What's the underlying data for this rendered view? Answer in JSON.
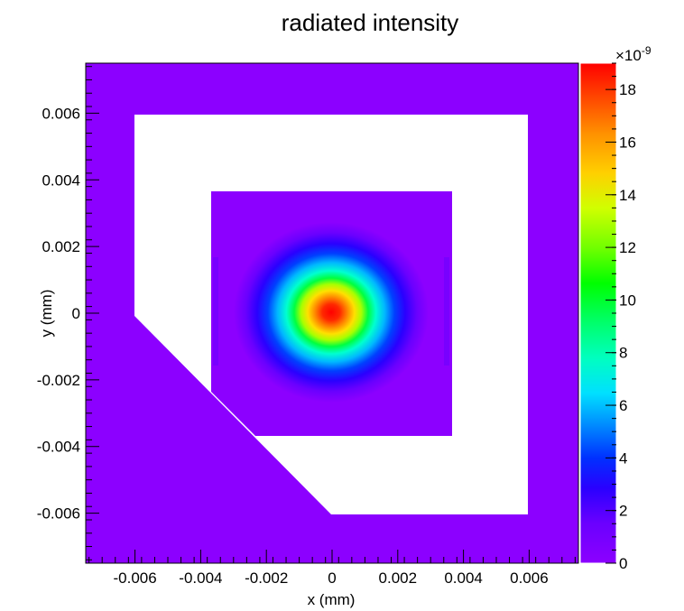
{
  "chart_data": {
    "type": "heatmap",
    "title": "radiated intensity",
    "xlabel": "x (mm)",
    "ylabel": "y (mm)",
    "xlim": [
      -0.0075,
      0.0075
    ],
    "ylim": [
      -0.0075,
      0.0075
    ],
    "x_ticks": [
      -0.006,
      -0.004,
      -0.002,
      0,
      0.002,
      0.004,
      0.006
    ],
    "x_tick_labels": [
      "-0.006",
      "-0.004",
      "-0.002",
      "0",
      "0.002",
      "0.004",
      "0.006"
    ],
    "y_ticks": [
      -0.006,
      -0.004,
      -0.002,
      0,
      0.002,
      0.004,
      0.006
    ],
    "y_tick_labels": [
      "-0.006",
      "-0.004",
      "-0.002",
      "0",
      "0.002",
      "0.004",
      "0.006"
    ],
    "colorbar": {
      "range": [
        0,
        19
      ],
      "exponent_label": "×10",
      "exponent_power": "-9",
      "ticks": [
        0,
        2,
        4,
        6,
        8,
        10,
        12,
        14,
        16,
        18
      ],
      "tick_labels": [
        "0",
        "2",
        "4",
        "6",
        "8",
        "10",
        "12",
        "14",
        "16",
        "18"
      ]
    },
    "peak": {
      "x": 0,
      "y": 0,
      "value": 19
    },
    "beam_sigma_x": 0.0014,
    "beam_sigma_y": 0.0012,
    "background_value": 0,
    "zero_region_color": "#ffffff",
    "floor_color": "#8c00ff",
    "palette": [
      "#8c00ff",
      "#6a00ff",
      "#2a00ff",
      "#0020ff",
      "#0070ff",
      "#00c8ff",
      "#00ffd0",
      "#00ff80",
      "#00ff20",
      "#70ff00",
      "#d0ff00",
      "#ffe000",
      "#ffa800",
      "#ff6a00",
      "#ff2800",
      "#ff0000"
    ]
  }
}
